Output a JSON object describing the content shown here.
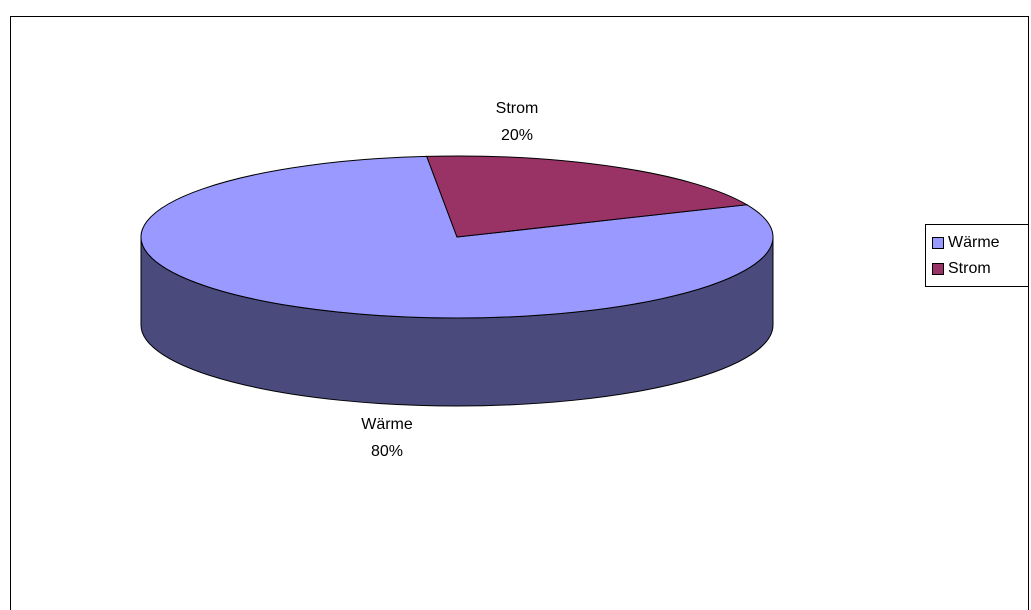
{
  "chart_data": {
    "type": "pie",
    "style": "3d",
    "categories": [
      "Wärme",
      "Strom"
    ],
    "values": [
      80,
      20
    ],
    "labels": [
      {
        "name": "Wärme",
        "percent": "80%"
      },
      {
        "name": "Strom",
        "percent": "20%"
      }
    ],
    "colors": {
      "Wärme": {
        "top": "#9999FF",
        "side": "#4A4A7D"
      },
      "Strom": {
        "top": "#993366",
        "side": "#5C1F3D"
      }
    },
    "legend": {
      "position": "right",
      "entries": [
        {
          "label": "Wärme",
          "color": "#9999FF"
        },
        {
          "label": "Strom",
          "color": "#993366"
        }
      ]
    }
  }
}
